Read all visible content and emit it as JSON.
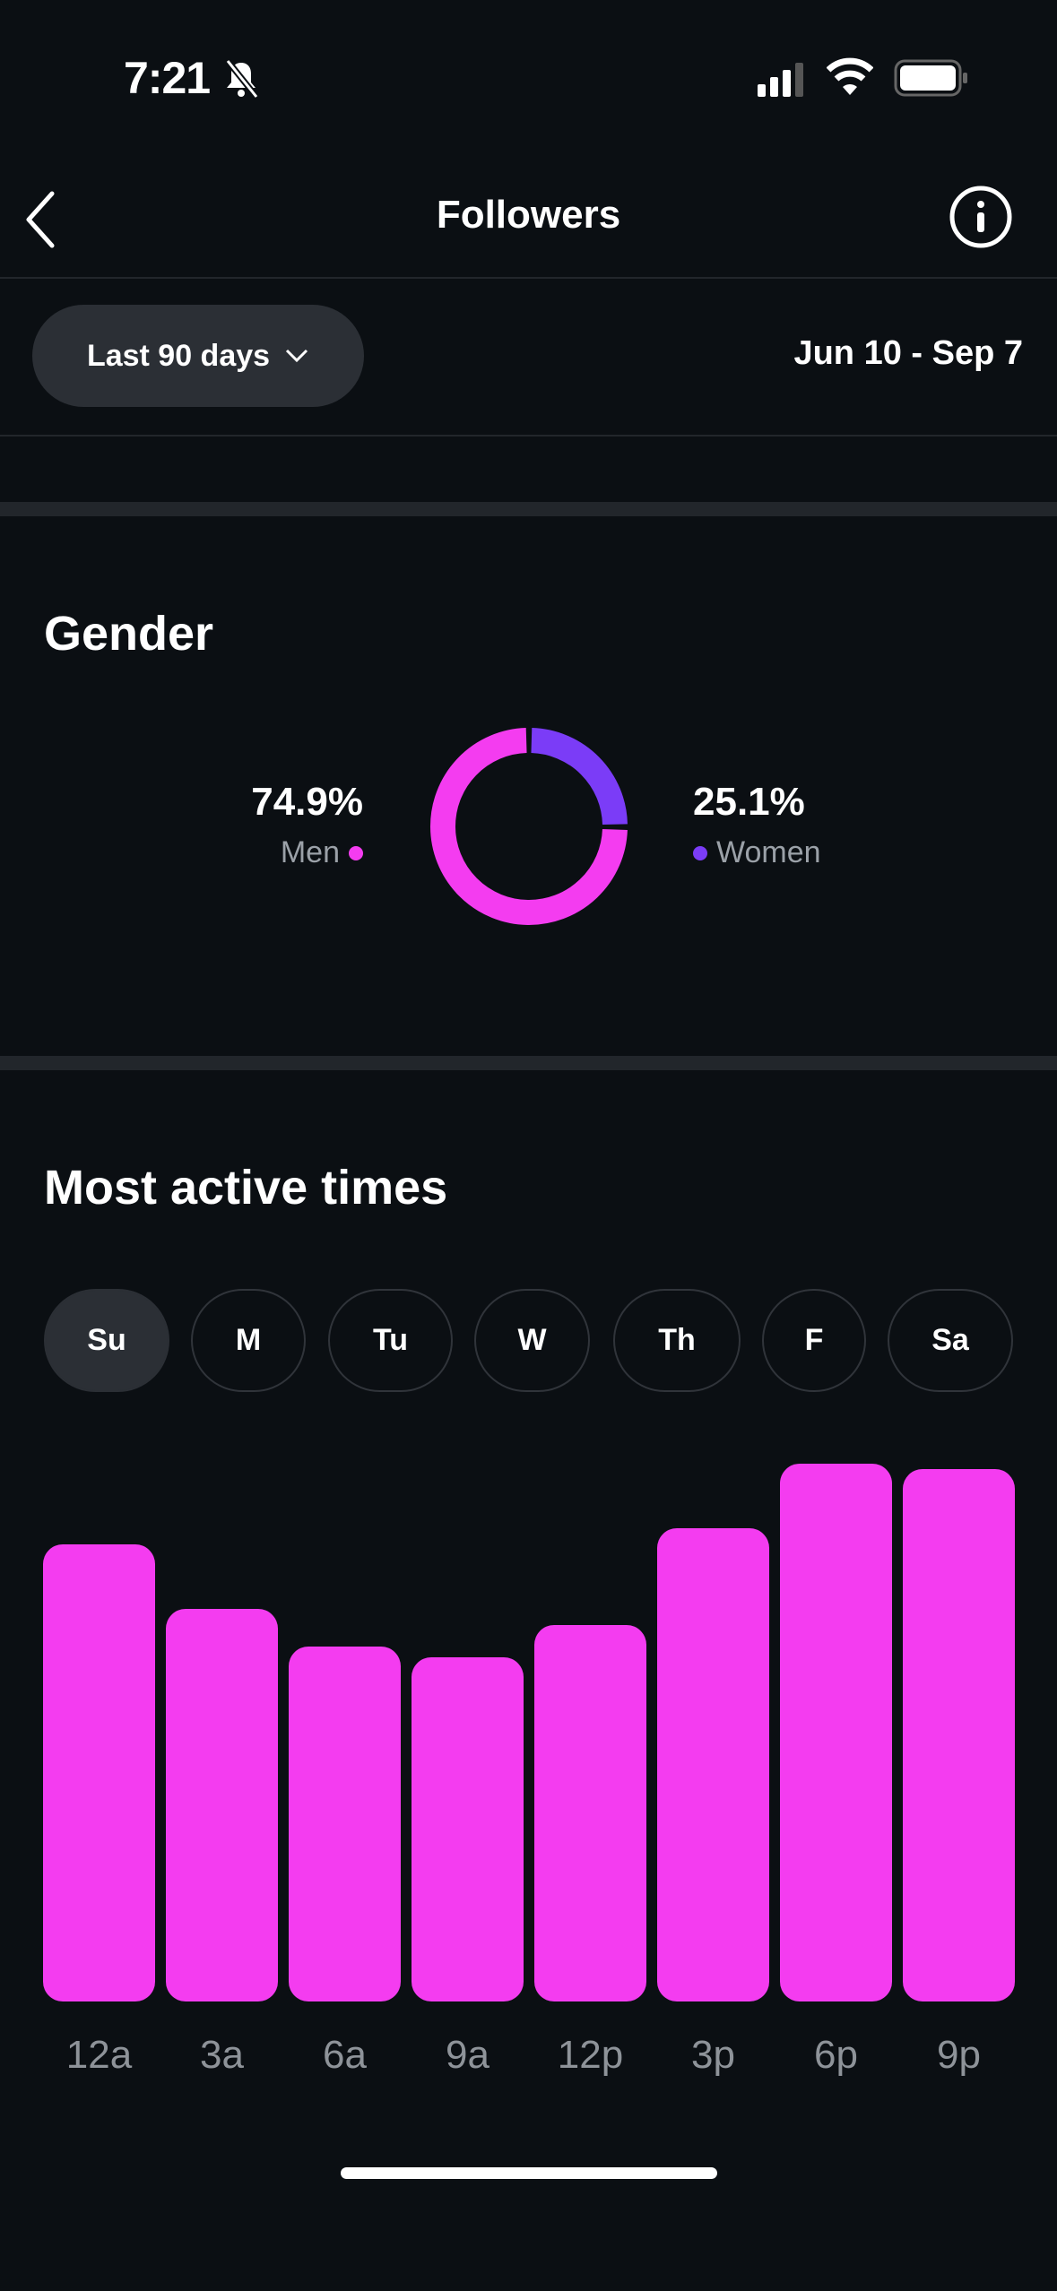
{
  "status_bar": {
    "time": "7:21"
  },
  "header": {
    "title": "Followers"
  },
  "filter": {
    "range_label": "Last 90 days",
    "date_range": "Jun 10 - Sep 7"
  },
  "gender": {
    "title": "Gender",
    "men": {
      "percent": "74.9%",
      "label": "Men",
      "value": 74.9,
      "color": "#f43cf0"
    },
    "women": {
      "percent": "25.1%",
      "label": "Women",
      "value": 25.1,
      "color": "#7b3cf7"
    }
  },
  "active_times": {
    "title": "Most active times",
    "days": [
      "Su",
      "M",
      "Tu",
      "W",
      "Th",
      "F",
      "Sa"
    ],
    "selected_day": "Su"
  },
  "chart_data": {
    "type": "bar",
    "categories": [
      "12a",
      "3a",
      "6a",
      "9a",
      "12p",
      "3p",
      "6p",
      "9p"
    ],
    "values": [
      85,
      73,
      66,
      64,
      70,
      88,
      100,
      99
    ],
    "color": "#f43cf0"
  }
}
